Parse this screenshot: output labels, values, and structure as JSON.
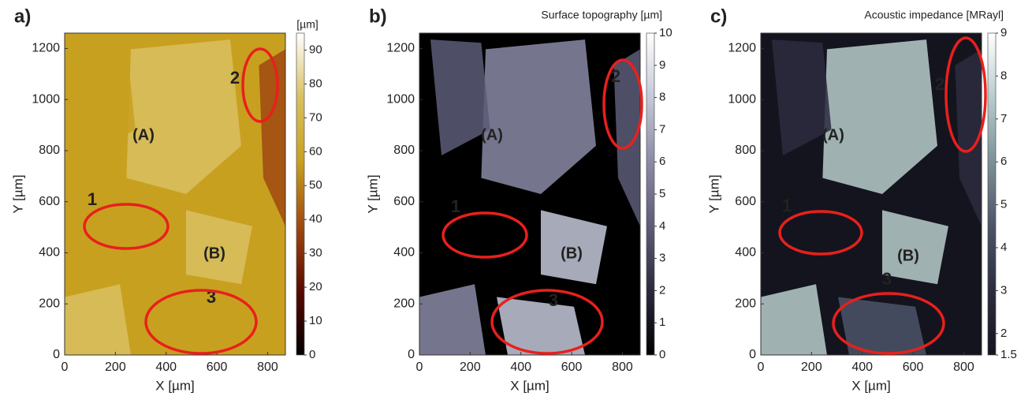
{
  "chart_data": [
    {
      "type": "image",
      "label": "a)",
      "colorbar_label": "[µm]",
      "xlabel": "X [µm]",
      "ylabel": "Y [µm]",
      "xlim": [
        0,
        870
      ],
      "xticks": [
        0,
        200,
        400,
        600,
        800
      ],
      "ylim": [
        0,
        1260
      ],
      "yticks": [
        0,
        200,
        400,
        600,
        800,
        1000,
        1200
      ],
      "clim": [
        0,
        95
      ],
      "cticks": [
        0,
        10,
        20,
        30,
        40,
        50,
        60,
        70,
        80,
        90
      ],
      "colormap": [
        "#000000",
        "#5a0a00",
        "#a04810",
        "#c8a020",
        "#d8c060",
        "#ffffff"
      ],
      "annotations": [
        "(A)",
        "(B)",
        "1",
        "2",
        "3"
      ]
    },
    {
      "type": "image",
      "label": "b)",
      "title": "Surface topography [µm]",
      "xlabel": "X [µm]",
      "ylabel": "Y [µm]",
      "xlim": [
        0,
        870
      ],
      "xticks": [
        0,
        200,
        400,
        600,
        800
      ],
      "ylim": [
        0,
        1260
      ],
      "yticks": [
        0,
        200,
        400,
        600,
        800,
        1000,
        1200
      ],
      "clim": [
        0,
        10
      ],
      "cticks": [
        0,
        1,
        2,
        3,
        4,
        5,
        6,
        7,
        8,
        9,
        10
      ],
      "colormap": [
        "#000000",
        "#2a2a3c",
        "#5c5c78",
        "#8a8aa6",
        "#c4c8d8",
        "#ffffff"
      ],
      "annotations": [
        "(A)",
        "(B)",
        "1",
        "2",
        "3"
      ]
    },
    {
      "type": "image",
      "label": "c)",
      "title": "Acoustic impedance [MRayl]",
      "xlabel": "X [µm]",
      "ylabel": "Y [µm]",
      "xlim": [
        0,
        870
      ],
      "xticks": [
        0,
        200,
        400,
        600,
        800
      ],
      "ylim": [
        0,
        1260
      ],
      "yticks": [
        0,
        200,
        400,
        600,
        800,
        1000,
        1200
      ],
      "clim": [
        1.5,
        9
      ],
      "cticks": [
        1.5,
        2,
        3,
        4,
        5,
        6,
        7,
        8,
        9
      ],
      "colormap": [
        "#14141e",
        "#2c2c40",
        "#4c5468",
        "#7c9098",
        "#b8cccc",
        "#ffffff"
      ],
      "annotations": [
        "(A)",
        "(B)",
        "1",
        "2",
        "3"
      ]
    }
  ]
}
